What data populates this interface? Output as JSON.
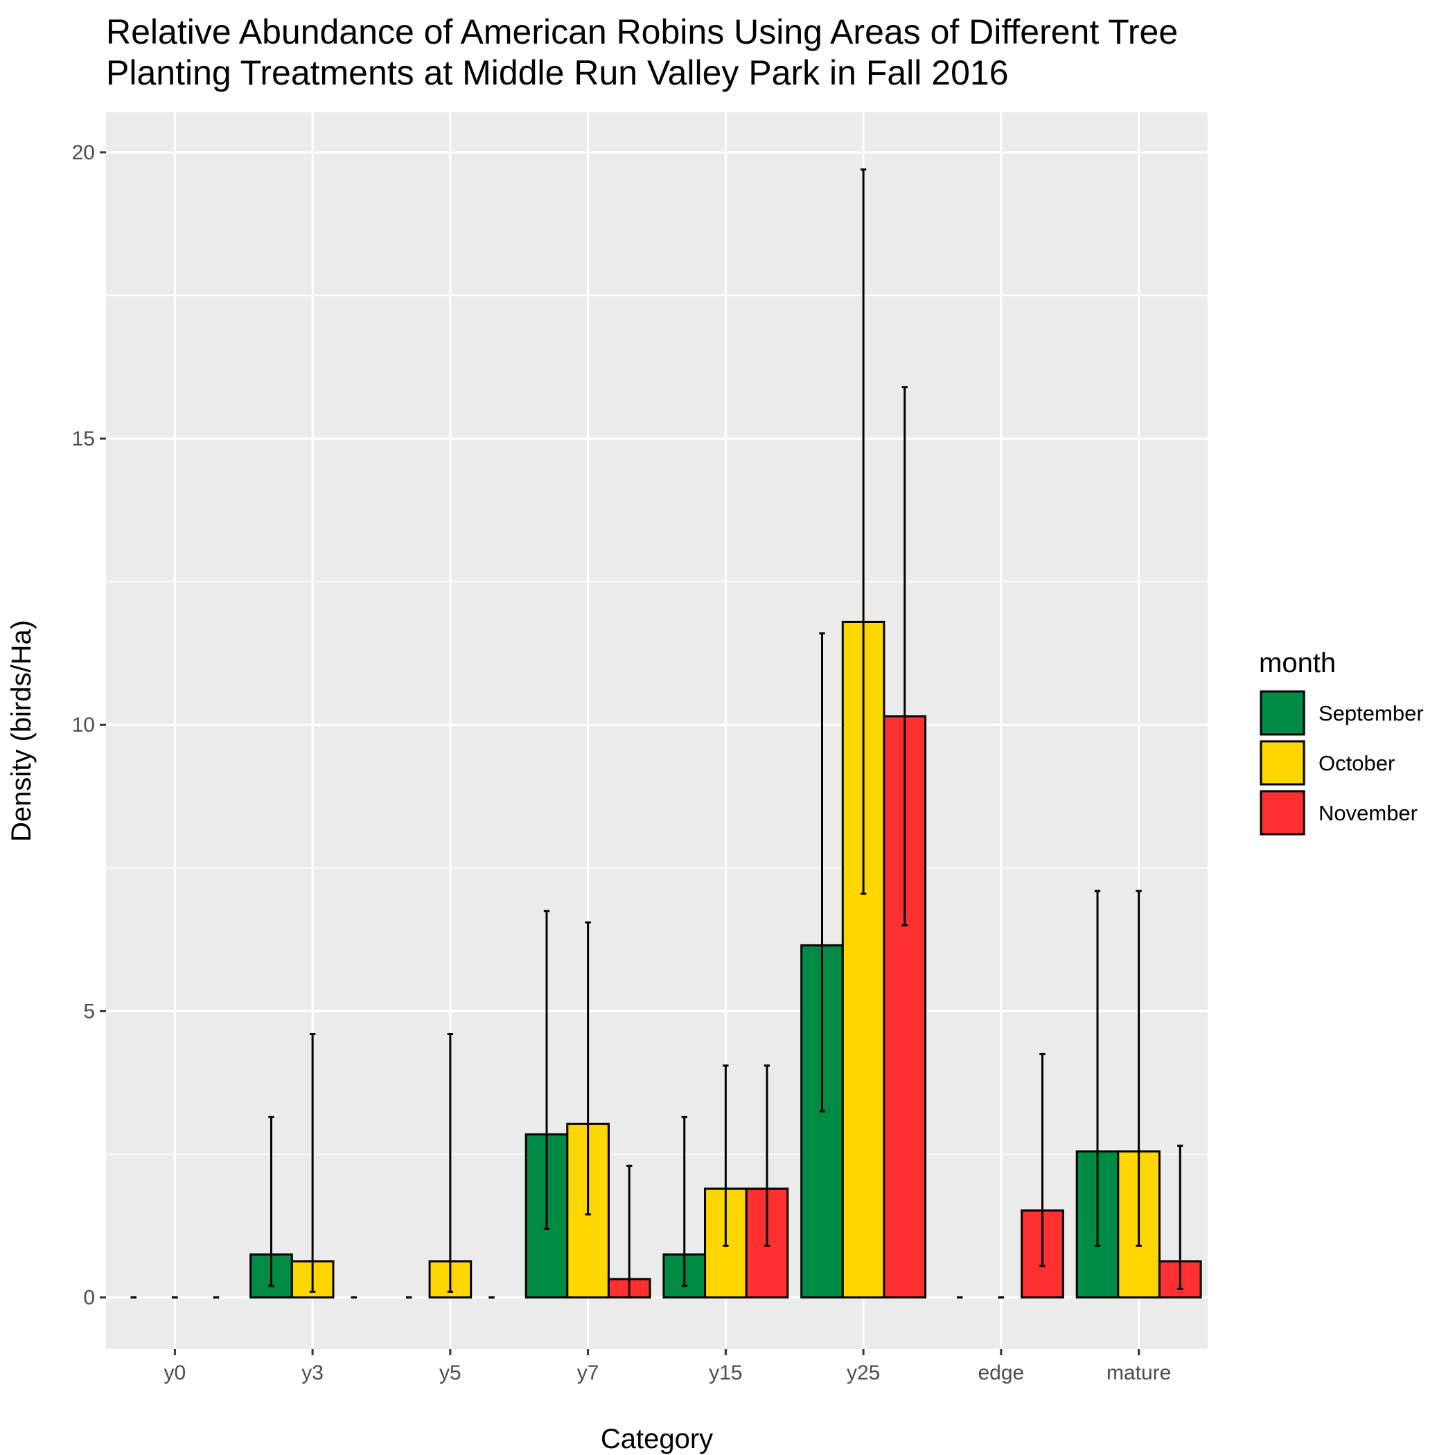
{
  "chart_data": {
    "type": "bar",
    "title_lines": [
      "Relative Abundance of American Robins Using Areas of Different Tree",
      "Planting Treatments at Middle Run Valley Park in Fall 2016"
    ],
    "xlabel": "Category",
    "ylabel": "Density (birds/Ha)",
    "categories": [
      "y0",
      "y3",
      "y5",
      "y7",
      "y15",
      "y25",
      "edge",
      "mature"
    ],
    "ylim": [
      -0.9,
      20.7
    ],
    "yticks": [
      0,
      5,
      10,
      15,
      20
    ],
    "ytick_labels": [
      "0",
      "5",
      "10",
      "15",
      "20"
    ],
    "grid": true,
    "legend": {
      "title": "month",
      "position": "right"
    },
    "series": [
      {
        "name": "September",
        "color": "#008B45",
        "values": [
          0,
          0.75,
          0,
          2.85,
          0.75,
          6.15,
          0,
          2.55
        ],
        "error_low": [
          0,
          0.2,
          0,
          1.2,
          0.2,
          3.25,
          0,
          0.9
        ],
        "error_high": [
          0,
          3.15,
          0,
          6.75,
          3.15,
          11.6,
          0,
          7.1
        ]
      },
      {
        "name": "October",
        "color": "#FFD700",
        "values": [
          0,
          0.63,
          0.63,
          3.03,
          1.9,
          11.8,
          0,
          2.55
        ],
        "error_low": [
          0,
          0.1,
          0.1,
          1.45,
          0.9,
          7.05,
          0,
          0.9
        ],
        "error_high": [
          0,
          4.6,
          4.6,
          6.55,
          4.05,
          19.7,
          0,
          7.1
        ]
      },
      {
        "name": "November",
        "color": "#FF3030",
        "values": [
          0,
          0,
          0,
          0.32,
          1.9,
          10.15,
          1.52,
          0.63
        ],
        "error_low": [
          0,
          0,
          0,
          0,
          0.9,
          6.5,
          0.55,
          0.15
        ],
        "error_high": [
          0,
          0,
          0,
          2.3,
          4.05,
          15.9,
          4.25,
          2.65
        ]
      }
    ]
  }
}
